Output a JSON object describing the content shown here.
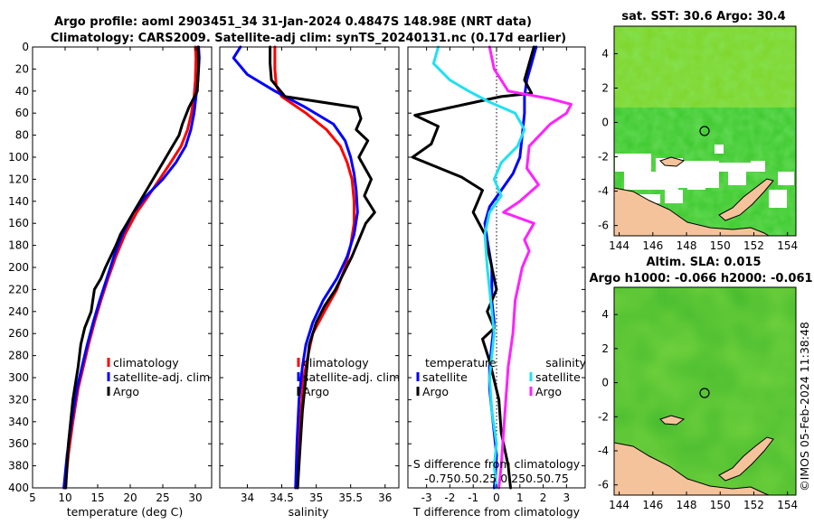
{
  "titles": {
    "line1": "Argo profile: aoml 2903451_34 31-Jan-2024 0.4847S 148.98E (NRT data)",
    "line2": "Climatology: CARS2009. Satellite-adj clim: synTS_20240131.nc (0.17d earlier)"
  },
  "colors": {
    "climatology": "#ff0000",
    "satellite": "#0000ff",
    "argo": "#000000",
    "cyan": "#22e0f0",
    "magenta": "#ff22ff",
    "land": "#f5c39b"
  },
  "chart_data": [
    {
      "type": "line",
      "id": "temp",
      "xlabel": "temperature (deg C)",
      "ylim": [
        0,
        400
      ],
      "xlim": [
        5,
        32.5
      ],
      "xticks": [
        5,
        10,
        15,
        20,
        25,
        30
      ],
      "yticks": [
        0,
        20,
        40,
        60,
        80,
        100,
        120,
        140,
        160,
        180,
        200,
        220,
        240,
        260,
        280,
        300,
        320,
        340,
        360,
        380,
        400
      ],
      "legend": [
        "climatology",
        "satellite-adj. clim",
        "Argo"
      ],
      "series": [
        {
          "name": "climatology",
          "color": "climatology",
          "x": [
            30.0,
            30.1,
            30.0,
            29.8,
            29.4,
            28.8,
            27.8,
            26.2,
            24.5,
            22.8,
            21.0,
            19.2,
            17.8,
            16.6,
            15.5,
            14.5,
            13.6,
            12.8,
            12.0,
            11.2,
            10.5,
            10.0
          ],
          "y": [
            0,
            10,
            30,
            45,
            60,
            75,
            90,
            105,
            120,
            135,
            150,
            170,
            190,
            210,
            230,
            250,
            270,
            290,
            310,
            340,
            370,
            400
          ]
        },
        {
          "name": "satellite-adj. clim",
          "color": "satellite",
          "x": [
            30.5,
            30.6,
            30.4,
            30.1,
            29.8,
            29.3,
            28.5,
            27.0,
            25.0,
            22.5,
            20.5,
            18.8,
            17.5,
            16.4,
            15.3,
            14.3,
            13.4,
            12.6,
            11.8,
            11.0,
            10.3,
            9.8
          ],
          "y": [
            0,
            10,
            30,
            45,
            60,
            75,
            90,
            105,
            120,
            135,
            150,
            170,
            190,
            210,
            230,
            250,
            270,
            290,
            310,
            340,
            370,
            400
          ]
        },
        {
          "name": "Argo",
          "color": "argo",
          "x": [
            30.4,
            30.5,
            30.3,
            29.0,
            28.0,
            27.5,
            26.5,
            25.5,
            24.5,
            23.5,
            22.5,
            21.5,
            20.5,
            19.5,
            18.5,
            17.8,
            17.0,
            16.2,
            15.5,
            14.5,
            14.0,
            13.0,
            12.4,
            12.0,
            11.2,
            10.5,
            10.1
          ],
          "y": [
            0,
            15,
            40,
            55,
            70,
            80,
            90,
            100,
            110,
            120,
            130,
            140,
            150,
            160,
            170,
            180,
            190,
            200,
            210,
            220,
            240,
            255,
            270,
            290,
            320,
            360,
            400
          ]
        }
      ]
    },
    {
      "type": "line",
      "id": "sal",
      "xlabel": "salinity",
      "ylim": [
        0,
        400
      ],
      "xlim": [
        33.6,
        36.2
      ],
      "xticks": [
        34,
        34.5,
        35,
        35.5,
        36
      ],
      "legend": [
        "climatology",
        "satellite-adj. clim",
        "Argo"
      ],
      "series": [
        {
          "name": "climatology",
          "color": "climatology",
          "x": [
            34.4,
            34.4,
            34.42,
            34.5,
            34.85,
            35.15,
            35.35,
            35.45,
            35.52,
            35.55,
            35.55,
            35.5,
            35.42,
            35.3,
            35.12,
            34.95,
            34.88,
            34.82,
            34.78,
            34.74,
            34.7
          ],
          "y": [
            0,
            20,
            35,
            45,
            60,
            75,
            90,
            105,
            120,
            140,
            160,
            180,
            200,
            220,
            240,
            260,
            280,
            300,
            330,
            370,
            400
          ]
        },
        {
          "name": "satellite-adj. clim",
          "color": "satellite",
          "x": [
            33.9,
            33.8,
            34.0,
            34.4,
            34.85,
            35.25,
            35.42,
            35.5,
            35.55,
            35.58,
            35.6,
            35.55,
            35.45,
            35.3,
            35.1,
            34.95,
            34.85,
            34.8,
            34.75,
            34.72,
            34.7
          ],
          "y": [
            0,
            10,
            25,
            40,
            55,
            70,
            85,
            100,
            115,
            130,
            150,
            170,
            190,
            210,
            230,
            250,
            270,
            290,
            320,
            360,
            400
          ]
        },
        {
          "name": "Argo",
          "color": "argo",
          "x": [
            34.33,
            34.33,
            34.35,
            34.55,
            35.6,
            35.65,
            35.58,
            35.75,
            35.62,
            35.8,
            35.7,
            35.85,
            35.72,
            35.62,
            35.52,
            35.4,
            35.28,
            35.12,
            35.0,
            34.9,
            34.85,
            34.8,
            34.76,
            34.73
          ],
          "y": [
            0,
            15,
            30,
            45,
            55,
            65,
            75,
            85,
            100,
            120,
            135,
            150,
            160,
            175,
            190,
            205,
            220,
            235,
            250,
            270,
            300,
            330,
            370,
            400
          ]
        }
      ]
    },
    {
      "type": "line",
      "id": "diff",
      "xlabel": "T difference from climatology",
      "ylim": [
        0,
        400
      ],
      "xlim": [
        -3.8,
        3.8
      ],
      "xticks": [
        -3,
        -2,
        -1,
        0,
        1,
        2,
        3
      ],
      "legend": [
        "temperature",
        "satellite",
        "Argo",
        "salinity",
        "satellite",
        "Argo"
      ],
      "annotation": {
        "line1": "S difference from climatology",
        "line2": "-0.750.50.25 0.250.50.75"
      },
      "series": [
        {
          "name": "T satellite",
          "color": "satellite",
          "x": [
            1.7,
            1.5,
            1.3,
            1.2,
            1.2,
            1.1,
            1.0,
            0.7,
            0.2,
            -0.3,
            -0.5,
            -0.4,
            -0.2,
            -0.2,
            -0.1,
            -0.2,
            -0.3,
            -0.3,
            -0.2,
            -0.1,
            0.0,
            -0.05,
            -0.1
          ],
          "y": [
            0,
            15,
            30,
            45,
            60,
            80,
            100,
            115,
            130,
            145,
            160,
            175,
            200,
            230,
            250,
            270,
            290,
            310,
            330,
            350,
            370,
            390,
            400
          ]
        },
        {
          "name": "T Argo",
          "color": "argo",
          "x": [
            1.6,
            1.4,
            1.2,
            1.5,
            0.2,
            -2.0,
            -3.5,
            -2.5,
            -2.8,
            -3.6,
            -1.5,
            -0.6,
            -1.0,
            -0.5,
            -0.2,
            0.0,
            -0.4,
            -0.1,
            -0.6,
            -0.3,
            0.1,
            0.2,
            0.5,
            0.6
          ],
          "y": [
            0,
            15,
            30,
            42,
            45,
            55,
            62,
            72,
            88,
            100,
            118,
            130,
            150,
            170,
            200,
            220,
            240,
            255,
            265,
            285,
            320,
            350,
            380,
            400
          ]
        },
        {
          "name": "S satellite",
          "color": "cyan",
          "x": [
            -2.5,
            -2.7,
            -2.0,
            -1.2,
            -0.3,
            0.8,
            1.2,
            0.9,
            0.2,
            -0.1,
            0.2,
            -0.3,
            -0.5,
            -0.4,
            -0.3,
            -0.2,
            -0.1,
            -0.2,
            -0.3,
            -0.2,
            0.0,
            -0.1,
            0.0
          ],
          "y": [
            0,
            15,
            30,
            40,
            50,
            60,
            75,
            90,
            105,
            120,
            135,
            150,
            170,
            200,
            220,
            240,
            260,
            280,
            300,
            330,
            360,
            380,
            400
          ]
        },
        {
          "name": "S Argo",
          "color": "magenta",
          "x": [
            -0.3,
            -0.1,
            0.5,
            2.3,
            3.2,
            3.0,
            2.3,
            1.4,
            1.3,
            1.8,
            1.0,
            0.3,
            1.6,
            1.2,
            1.4,
            1.1,
            0.8,
            0.7,
            0.5,
            0.4,
            0.3,
            0.2,
            0.1
          ],
          "y": [
            0,
            20,
            40,
            47,
            52,
            60,
            70,
            90,
            110,
            125,
            140,
            150,
            160,
            175,
            185,
            200,
            230,
            260,
            290,
            320,
            350,
            380,
            400
          ]
        }
      ]
    }
  ],
  "maps": [
    {
      "id": "sst",
      "title": "sat. SST: 30.6 Argo: 30.4",
      "xticks": [
        144,
        146,
        148,
        150,
        152,
        154
      ],
      "yticks": [
        4,
        2,
        0,
        -2,
        -4,
        -6
      ],
      "xlim": [
        143.7,
        154.5
      ],
      "ylim": [
        -6.6,
        5.6
      ],
      "marker": {
        "lon": 149.0,
        "lat": -0.5
      }
    },
    {
      "id": "sla",
      "title": "Altim. SLA: 0.015",
      "subtitle": "Argo h1000: -0.066 h2000: -0.061",
      "xticks": [
        144,
        146,
        148,
        150,
        152,
        154
      ],
      "yticks": [
        4,
        2,
        0,
        -2,
        -4,
        -6
      ],
      "xlim": [
        143.7,
        154.5
      ],
      "ylim": [
        -6.6,
        5.6
      ],
      "marker": {
        "lon": 149.0,
        "lat": -0.5
      }
    }
  ],
  "footer": {
    "credit": "©IMOS 05-Feb-2024 11:38:48"
  }
}
